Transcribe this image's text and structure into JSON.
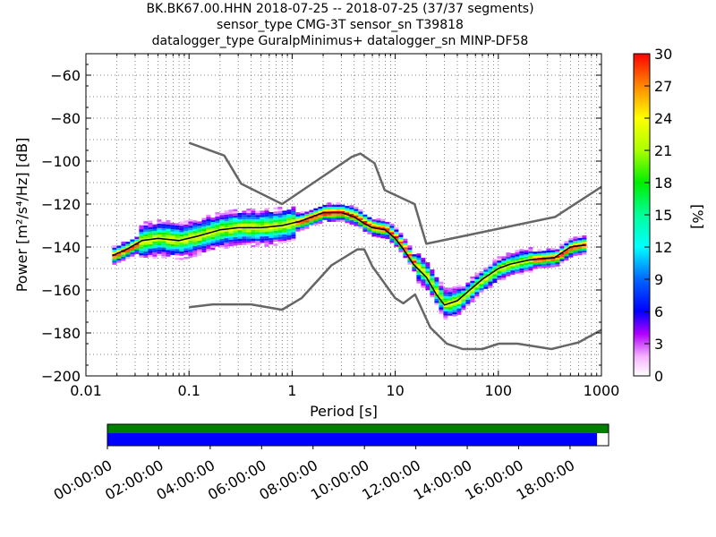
{
  "title_lines": [
    "BK.BK67.00.HHN   2018-07-25 -- 2018-07-25  (37/37 segments)",
    "sensor_type CMG-3T sensor_sn T39818",
    "datalogger_type GuralpMinimus+ datalogger_sn MINP-DF58"
  ],
  "colors": {
    "noise_model": "#666666",
    "mode_line": "#000000",
    "grid": "#555555",
    "timeline_green": "#007f00",
    "timeline_blue": "#0000ff"
  },
  "chart_data": {
    "type": "heatmap",
    "xlabel": "Period [s]",
    "ylabel": "Power [m²/s⁴/Hz] [dB]",
    "x_scale": "log",
    "xlim": [
      0.01,
      1000
    ],
    "ylim": [
      -200,
      -50
    ],
    "x_ticks": [
      0.01,
      0.1,
      1,
      10,
      100,
      1000
    ],
    "x_tick_labels": [
      "0.01",
      "0.1",
      "1",
      "10",
      "100",
      "1000"
    ],
    "y_ticks": [
      -200,
      -180,
      -160,
      -140,
      -120,
      -100,
      -80,
      -60
    ],
    "y_tick_labels": [
      "−200",
      "−180",
      "−160",
      "−140",
      "−120",
      "−100",
      "−80",
      "−60"
    ],
    "colorbar": {
      "label": "[%]",
      "range": [
        0,
        30
      ],
      "ticks": [
        0,
        3,
        6,
        9,
        12,
        15,
        18,
        21,
        24,
        27,
        30
      ],
      "tick_labels": [
        "0",
        "3",
        "6",
        "9",
        "12",
        "15",
        "18",
        "21",
        "24",
        "27",
        "30"
      ]
    },
    "mode_curve": {
      "x": [
        0.018,
        0.025,
        0.035,
        0.05,
        0.08,
        0.12,
        0.2,
        0.3,
        0.5,
        0.8,
        1.2,
        2,
        3,
        4,
        5,
        6,
        8,
        10,
        12,
        15,
        20,
        25,
        30,
        40,
        50,
        70,
        100,
        130,
        200,
        350,
        500,
        700
      ],
      "y": [
        -144,
        -141,
        -137,
        -136,
        -137,
        -135,
        -132,
        -131,
        -131,
        -130,
        -128,
        -124,
        -124,
        -126,
        -129,
        -131,
        -132,
        -136,
        -141,
        -148,
        -154,
        -162,
        -167,
        -165,
        -161,
        -155,
        -150,
        -148,
        -146,
        -145,
        -140,
        -139
      ]
    },
    "high_noise_model": {
      "x": [
        0.1,
        0.22,
        0.32,
        0.8,
        3.8,
        4.6,
        6.3,
        7.9,
        15.4,
        20,
        354.8,
        1000
      ],
      "y": [
        -91.5,
        -97.4,
        -110.5,
        -120,
        -98,
        -96.5,
        -101,
        -113.5,
        -120,
        -138.5,
        -126,
        -112
      ]
    },
    "low_noise_model": {
      "x": [
        0.1,
        0.17,
        0.4,
        0.8,
        1.24,
        2.4,
        4.3,
        5,
        6,
        10,
        12,
        15.6,
        21.9,
        31.6,
        45,
        70,
        101,
        154,
        328,
        600,
        1000
      ],
      "y": [
        -168,
        -166.7,
        -166.7,
        -169.2,
        -163.7,
        -148.6,
        -141.1,
        -141.1,
        -149,
        -163.8,
        -166.2,
        -162.1,
        -177.5,
        -185,
        -187.5,
        -187.5,
        -185,
        -185,
        -187.5,
        -184.4,
        -178.6
      ]
    },
    "timeline": {
      "x_tick_labels": [
        "00:00:00",
        "02:00:00",
        "04:00:00",
        "06:00:00",
        "08:00:00",
        "10:00:00",
        "12:00:00",
        "14:00:00",
        "16:00:00",
        "18:00:00"
      ],
      "x_ticks_hours": [
        0,
        2,
        4,
        6,
        8,
        10,
        12,
        14,
        16,
        18
      ],
      "range_hours": [
        0,
        19.5
      ],
      "data_coverage_hours": [
        0,
        19.5
      ],
      "psd_coverage_hours": [
        0,
        19.05
      ]
    }
  }
}
